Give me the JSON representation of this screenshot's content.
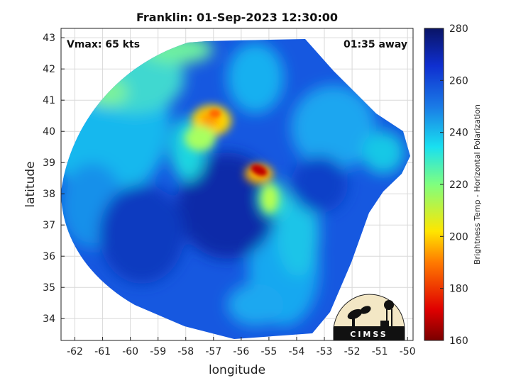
{
  "title": "Franklin: 01-Sep-2023 12:30:00",
  "vmax_label": "Vmax: 65 kts",
  "away_label": "01:35 away",
  "xlabel": "longitude",
  "ylabel": "latitude",
  "x_ticks": [
    "-62",
    "-61",
    "-60",
    "-59",
    "-58",
    "-57",
    "-56",
    "-55",
    "-54",
    "-53",
    "-52",
    "-51",
    "-50"
  ],
  "y_ticks": [
    "43",
    "42",
    "41",
    "40",
    "39",
    "38",
    "37",
    "36",
    "35",
    "34"
  ],
  "colorbar": {
    "label": "Brightness Temp - Horizontal Polarization",
    "ticks": [
      "280",
      "260",
      "240",
      "220",
      "200",
      "180",
      "160"
    ],
    "range": [
      160,
      280
    ]
  },
  "logo_text": "CIMSS",
  "colors": {
    "cold": "#7a0000",
    "warm": "#0a1e8c",
    "mid": "#19c8e6",
    "yellow": "#ffe600"
  },
  "chart_data": {
    "type": "heatmap",
    "title": "Franklin: 01-Sep-2023 12:30:00",
    "xlabel": "longitude",
    "ylabel": "latitude",
    "xlim": [
      -62.5,
      -49.8
    ],
    "ylim": [
      33.3,
      43.3
    ],
    "storm_center": {
      "lon": -56.5,
      "lat": 38.2
    },
    "features": [
      {
        "name": "",
        "lon": -55.5,
        "lat": 38.8,
        "tb": 175
      },
      {
        "name": "",
        "lon": -56.8,
        "lat": 40.6,
        "tb": 200
      }
    ]
  }
}
